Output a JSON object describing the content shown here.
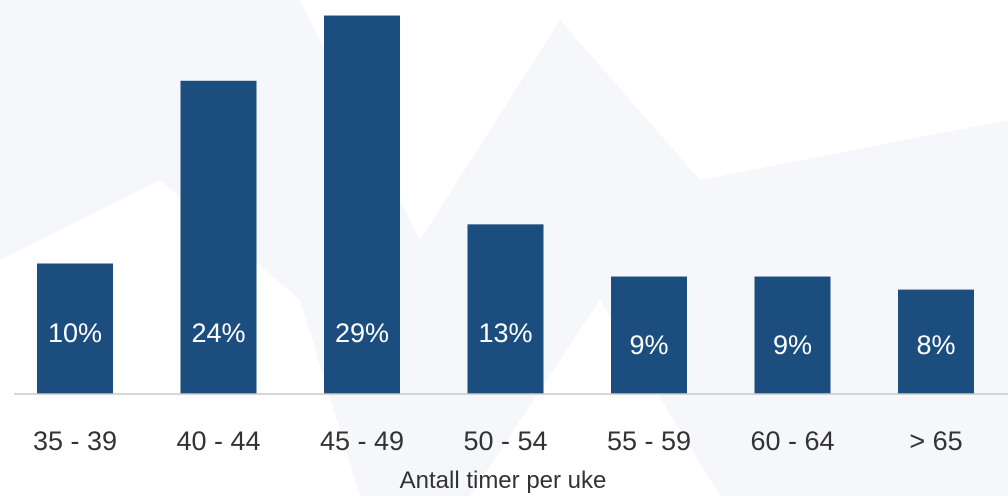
{
  "chart_data": {
    "type": "bar",
    "categories": [
      "35 - 39",
      "40 - 44",
      "45 - 49",
      "50 - 54",
      "55 - 59",
      "60 - 64",
      "> 65"
    ],
    "values": [
      10,
      24,
      29,
      13,
      9,
      9,
      8
    ],
    "data_labels": [
      "10%",
      "24%",
      "29%",
      "13%",
      "9%",
      "9%",
      "8%"
    ],
    "title": "",
    "xlabel": "Antall timer per uke",
    "ylabel": "",
    "ylim": [
      0,
      29.5
    ],
    "grid": false,
    "legend": "none",
    "colors": {
      "bar": "#1b4e7e",
      "axis": "#c8c8c8",
      "text": "#333333",
      "background_shape": "#e9ecf4"
    }
  }
}
